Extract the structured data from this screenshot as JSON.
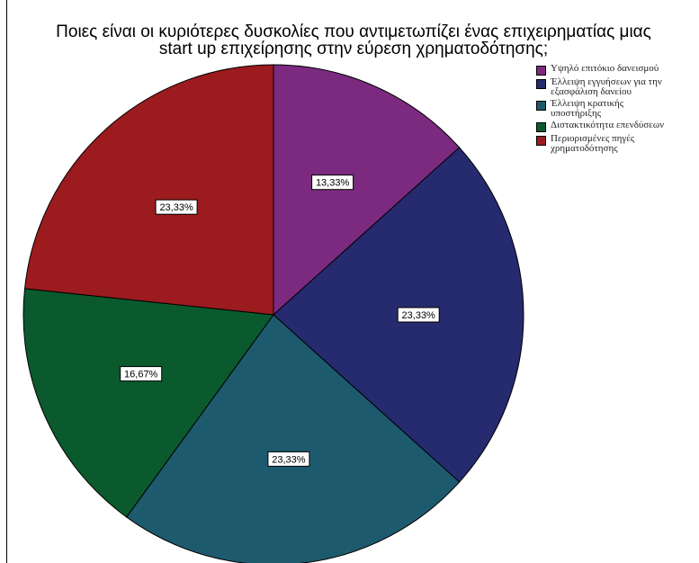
{
  "chart_data": {
    "type": "pie",
    "title_line1": "Ποιες είναι οι κυριότερες δυσκολίες που αντιμετωπίζει ένας επιχειρηματίας μιας",
    "title_line2": "start up επιχείρησης στην εύρεση χρηματοδότησης;",
    "categories": [
      "Υψηλό επιτόκιο δανεισμού",
      "Έλλειψη εγγυήσεων για την εξασφάλιση δανείου",
      "Έλλειψη κρατικής υποστήριξης",
      "Διστακτικότητα επενδύσεων",
      "Περιορισμένες πηγές χρηματοδότησης"
    ],
    "legend_lines": [
      [
        "Υψηλό επιτόκιο δανεισμού"
      ],
      [
        "Έλλειψη εγγυήσεων για την",
        "εξασφάλιση δανείου"
      ],
      [
        "Έλλειψη κρατικής",
        "υποστήριξης"
      ],
      [
        "Διστακτικότητα επενδύσεων"
      ],
      [
        "Περιορισμένες πηγές",
        "χρηματοδότησης"
      ]
    ],
    "values": [
      13.33,
      23.33,
      23.33,
      16.67,
      23.33
    ],
    "labels": [
      "13,33%",
      "23,33%",
      "23,33%",
      "16,67%",
      "23,33%"
    ],
    "colors": [
      "#7b2a80",
      "#262a6e",
      "#1e5a6e",
      "#0a5a2e",
      "#9b1b1f"
    ],
    "start": "12 o'clock",
    "direction": "clockwise",
    "legend_position": "top-right"
  }
}
